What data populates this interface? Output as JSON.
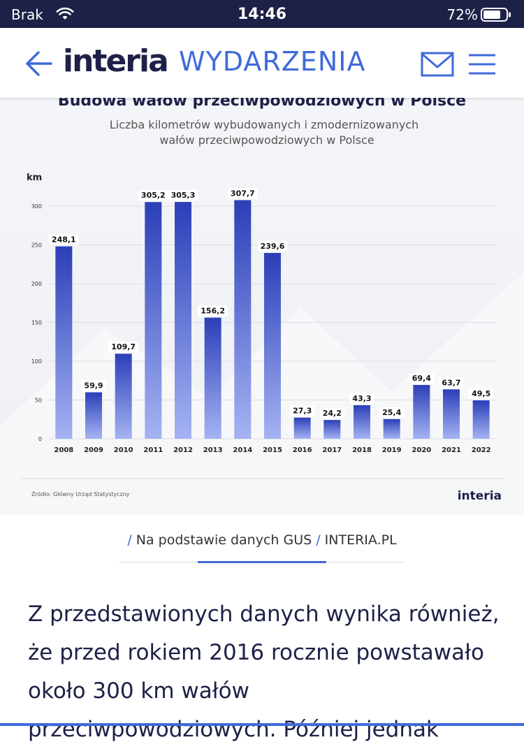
{
  "status_bar": {
    "carrier": "Brak",
    "time": "14:46",
    "battery": "72%"
  },
  "nav": {
    "logo": "interia",
    "section": "WYDARZENIA",
    "icons": {
      "back": "arrow-left-icon",
      "mail": "mail-icon",
      "menu": "hamburger-menu-icon"
    },
    "accent_color": "#3f6ad8",
    "brand_color": "#1d2147"
  },
  "chart_data": {
    "type": "bar",
    "title": "Budowa wałów przeciwpowodziowych w Polsce",
    "subtitle_line1": "Liczba kilometrów wybudowanych i zmodernizowanych",
    "subtitle_line2": "wałów przeciwpowodziowych w Polsce",
    "ylabel": "km",
    "ylim": [
      0,
      300
    ],
    "yticks": [
      "0",
      "50",
      "100",
      "150",
      "200",
      "250",
      "300"
    ],
    "categories": [
      "2008",
      "2009",
      "2010",
      "2011",
      "2012",
      "2013",
      "2014",
      "2015",
      "2016",
      "2017",
      "2018",
      "2019",
      "2020",
      "2021",
      "2022"
    ],
    "values": [
      248.1,
      59.9,
      109.7,
      305.2,
      305.3,
      156.2,
      307.7,
      239.6,
      27.3,
      24.2,
      43.3,
      25.4,
      69.4,
      63.7,
      49.5
    ],
    "value_labels": [
      "248,1",
      "59,9",
      "109,7",
      "305,2",
      "305,3",
      "156,2",
      "307,7",
      "239,6",
      "27,3",
      "24,2",
      "43,3",
      "25,4",
      "69,4",
      "63,7",
      "49,5"
    ],
    "grid": true,
    "bar_color_top": "#2b3fb8",
    "bar_color_bottom": "#a5b3f3",
    "source": "Źródło: Główny Urząd Statystyczny",
    "watermark": "interia"
  },
  "caption": {
    "source": "Na podstawie danych GUS",
    "site": "INTERIA.PL"
  },
  "article": {
    "text": "Z przedstawionych danych wynika również, że przed rokiem 2016 rocznie powstawało około 300 km wałów przeciwpowodziowych. Później jednak"
  }
}
